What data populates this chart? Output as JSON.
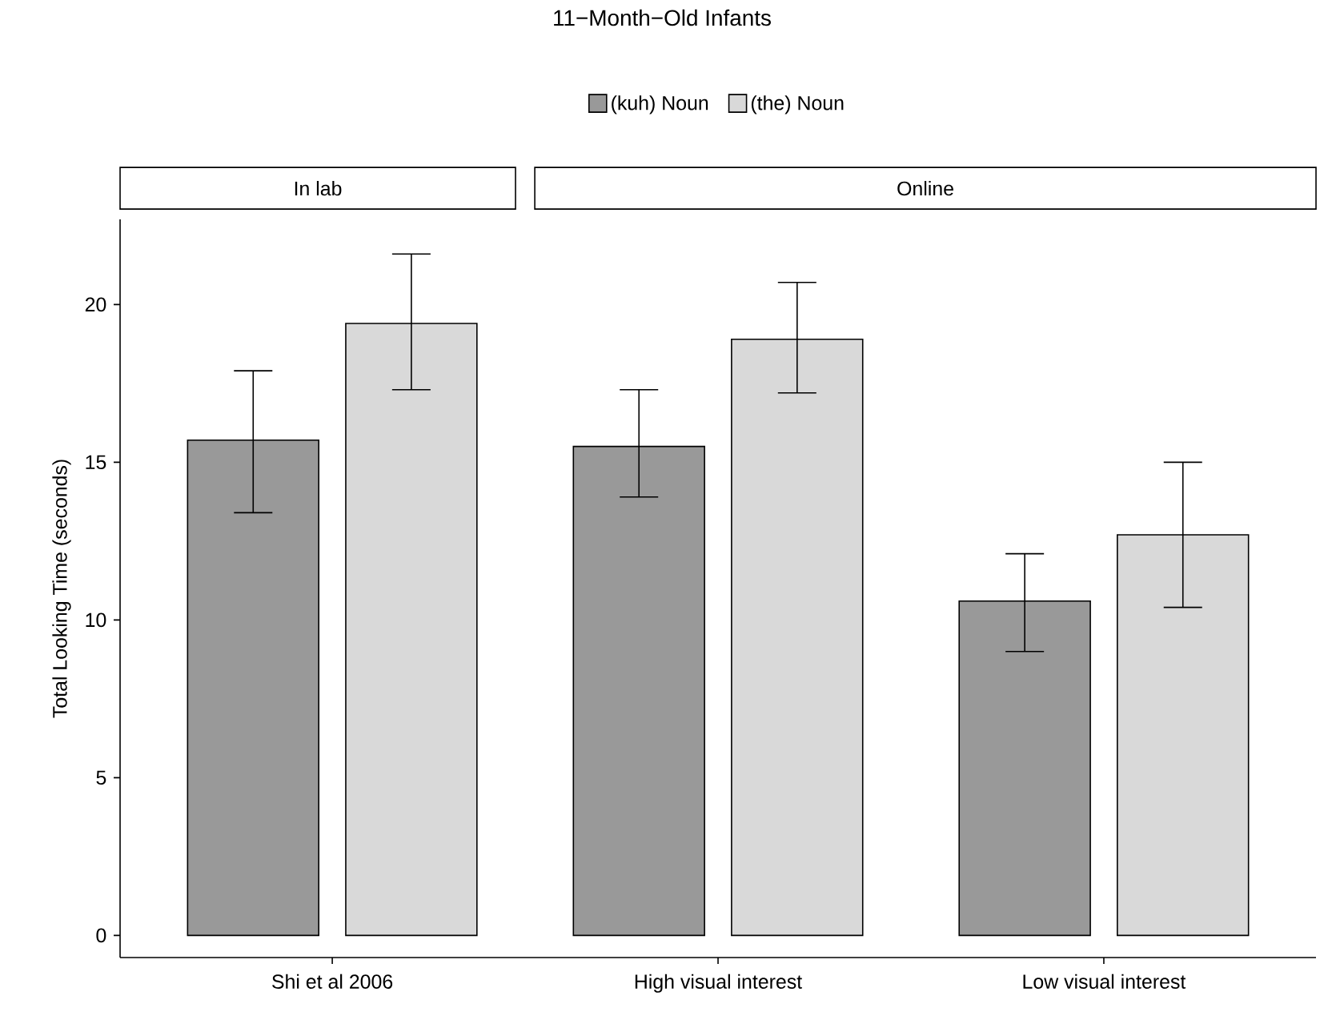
{
  "chart_data": {
    "type": "bar",
    "title": "11−Month−Old Infants",
    "ylabel": "Total Looking Time (seconds)",
    "categories": [
      "Shi et al 2006",
      "High visual interest",
      "Low visual interest"
    ],
    "ylim": [
      -0.7,
      22.7
    ],
    "yticks": [
      0,
      5,
      10,
      15,
      20
    ],
    "legend": "top",
    "annotations": [
      "In lab",
      "Online"
    ],
    "series": [
      {
        "name": "(kuh) Noun",
        "color": "#999999",
        "values": [
          15.7,
          15.5,
          10.6
        ],
        "errors": [
          [
            13.4,
            17.9
          ],
          [
            13.9,
            17.3
          ],
          [
            9.0,
            12.1
          ]
        ]
      },
      {
        "name": "(the) Noun",
        "color": "#d9d9d9",
        "values": [
          19.4,
          18.9,
          12.7
        ],
        "errors": [
          [
            17.3,
            21.6
          ],
          [
            17.2,
            20.7
          ],
          [
            10.4,
            15.0
          ]
        ]
      }
    ]
  }
}
